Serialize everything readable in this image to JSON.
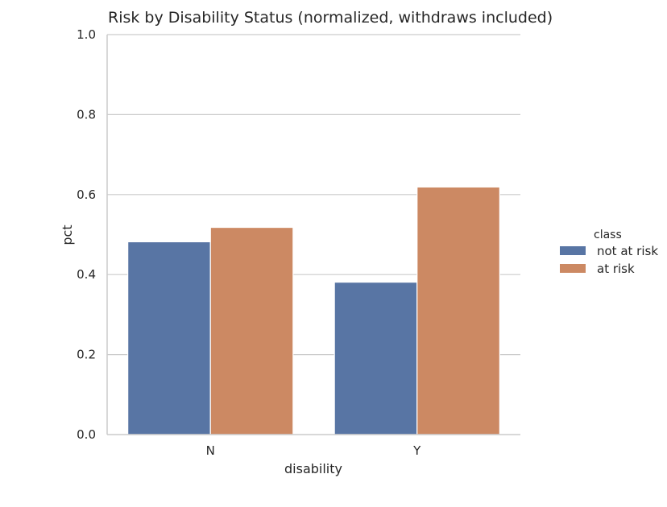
{
  "chart_data": {
    "type": "bar",
    "title": "Risk by Disability Status (normalized, withdraws included)",
    "xlabel": "disability",
    "ylabel": "pct",
    "categories": [
      "N",
      "Y"
    ],
    "series": [
      {
        "name": "not at risk",
        "values": [
          0.482,
          0.381
        ],
        "color": "#5875a4"
      },
      {
        "name": "at risk",
        "values": [
          0.518,
          0.619
        ],
        "color": "#cc8963"
      }
    ],
    "ylim": [
      0,
      1.0
    ],
    "yticks": [
      "0.0",
      "0.2",
      "0.4",
      "0.6",
      "0.8",
      "1.0"
    ],
    "grid": "horizontal",
    "legend": {
      "title": "class",
      "placement": "right"
    }
  }
}
